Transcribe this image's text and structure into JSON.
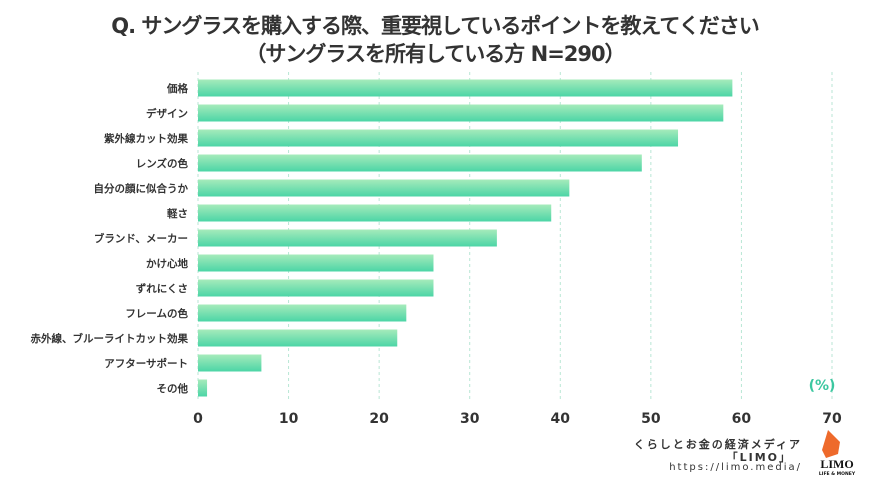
{
  "title": "Q. サングラスを購入する際、重要視しているポイントを教えてください",
  "subtitle": "（サングラスを所有している方 N=290）",
  "chart_data": {
    "type": "bar",
    "orientation": "horizontal",
    "title": "Q. サングラスを購入する際、重要視しているポイントを教えてください（サングラスを所有している方 N=290）",
    "categories": [
      "価格",
      "デザイン",
      "紫外線カット効果",
      "レンズの色",
      "自分の顔に似合うか",
      "軽さ",
      "ブランド、メーカー",
      "かけ心地",
      "ずれにくさ",
      "フレームの色",
      "赤外線、ブルーライトカット効果",
      "アフターサポート",
      "その他"
    ],
    "values": [
      59,
      58,
      53,
      49,
      41,
      39,
      33,
      26,
      26,
      23,
      22,
      7,
      1
    ],
    "xlim": [
      0,
      70
    ],
    "xticks": [
      "0",
      "10",
      "20",
      "30",
      "40",
      "50",
      "60",
      "70"
    ],
    "unit_label": "(%)",
    "grid": "vertical dashed",
    "bar_color_top": "#a6ebbb",
    "bar_color_bottom": "#4cd5a6",
    "unit_color": "#3cc7a0"
  },
  "credit": {
    "line1": "くらしとお金の経済メディア",
    "line2": "「LIMO」",
    "line3": "https://limo.media/"
  },
  "logo": {
    "name": "LIMO",
    "tagline": "LIFE & MONEY"
  }
}
